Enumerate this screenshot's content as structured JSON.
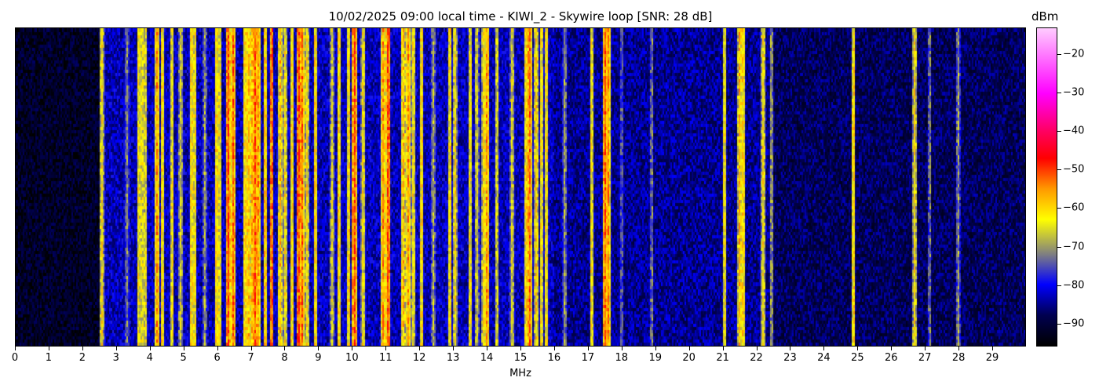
{
  "chart_data": {
    "type": "heatmap",
    "title": "10/02/2025 09:00 local time - KIWI_2 - Skywire loop [SNR: 28 dB]",
    "xlabel": "MHz",
    "ylabel": "",
    "xlim": [
      0,
      30
    ],
    "xticks": [
      0,
      1,
      2,
      3,
      4,
      5,
      6,
      7,
      8,
      9,
      10,
      11,
      12,
      13,
      14,
      15,
      16,
      17,
      18,
      19,
      20,
      21,
      22,
      23,
      24,
      25,
      26,
      27,
      28,
      29
    ],
    "colorbar": {
      "label": "dBm",
      "range": [
        -96,
        -13
      ],
      "ticks": [
        -20,
        -30,
        -40,
        -50,
        -60,
        -70,
        -80,
        -90
      ],
      "colormap": [
        [
          -96,
          "#000000"
        ],
        [
          -88,
          "#000050"
        ],
        [
          -80,
          "#0000ff"
        ],
        [
          -72,
          "#808080"
        ],
        [
          -63,
          "#ffff00"
        ],
        [
          -55,
          "#ff9900"
        ],
        [
          -47,
          "#ff0000"
        ],
        [
          -40,
          "#ff0060"
        ],
        [
          -30,
          "#ff00ff"
        ],
        [
          -13,
          "#ffccff"
        ]
      ]
    },
    "noise_floor": [
      {
        "from": 0,
        "to": 2.5,
        "dbm": -92
      },
      {
        "from": 2.5,
        "to": 16,
        "dbm": -83
      },
      {
        "from": 16,
        "to": 22.5,
        "dbm": -85
      },
      {
        "from": 22.5,
        "to": 30,
        "dbm": -88
      }
    ],
    "signals": [
      [
        2.55,
        -62
      ],
      [
        3.3,
        -72
      ],
      [
        3.65,
        -62
      ],
      [
        3.75,
        -63
      ],
      [
        3.85,
        -64
      ],
      [
        4.2,
        -55
      ],
      [
        4.35,
        -60
      ],
      [
        4.65,
        -62
      ],
      [
        4.9,
        -65
      ],
      [
        5.2,
        -60
      ],
      [
        5.3,
        -62
      ],
      [
        5.6,
        -70
      ],
      [
        5.95,
        -60
      ],
      [
        6.05,
        -62
      ],
      [
        6.3,
        -50
      ],
      [
        6.45,
        -52
      ],
      [
        6.8,
        -60
      ],
      [
        6.9,
        -58
      ],
      [
        7.0,
        -58
      ],
      [
        7.1,
        -50
      ],
      [
        7.2,
        -55
      ],
      [
        7.4,
        -58
      ],
      [
        7.6,
        -52
      ],
      [
        7.85,
        -58
      ],
      [
        8.0,
        -62
      ],
      [
        8.2,
        -60
      ],
      [
        8.4,
        -50
      ],
      [
        8.5,
        -52
      ],
      [
        8.65,
        -62
      ],
      [
        8.9,
        -60
      ],
      [
        9.4,
        -65
      ],
      [
        9.6,
        -60
      ],
      [
        9.9,
        -60
      ],
      [
        10.05,
        -50
      ],
      [
        10.3,
        -62
      ],
      [
        10.9,
        -55
      ],
      [
        11.05,
        -50
      ],
      [
        11.5,
        -58
      ],
      [
        11.65,
        -55
      ],
      [
        11.8,
        -62
      ],
      [
        12.05,
        -60
      ],
      [
        12.4,
        -68
      ],
      [
        12.9,
        -60
      ],
      [
        13.05,
        -62
      ],
      [
        13.5,
        -62
      ],
      [
        13.7,
        -65
      ],
      [
        13.9,
        -62
      ],
      [
        14.0,
        -55
      ],
      [
        14.3,
        -65
      ],
      [
        14.75,
        -65
      ],
      [
        15.15,
        -60
      ],
      [
        15.25,
        -52
      ],
      [
        15.45,
        -60
      ],
      [
        15.6,
        -62
      ],
      [
        15.75,
        -62
      ],
      [
        16.3,
        -70
      ],
      [
        17.1,
        -62
      ],
      [
        17.5,
        -52
      ],
      [
        17.6,
        -55
      ],
      [
        18.0,
        -75
      ],
      [
        18.9,
        -72
      ],
      [
        21.05,
        -62
      ],
      [
        21.5,
        -58
      ],
      [
        21.6,
        -60
      ],
      [
        22.2,
        -62
      ],
      [
        22.45,
        -70
      ],
      [
        24.9,
        -60
      ],
      [
        26.7,
        -62
      ],
      [
        27.15,
        -72
      ],
      [
        28.0,
        -70
      ]
    ]
  }
}
